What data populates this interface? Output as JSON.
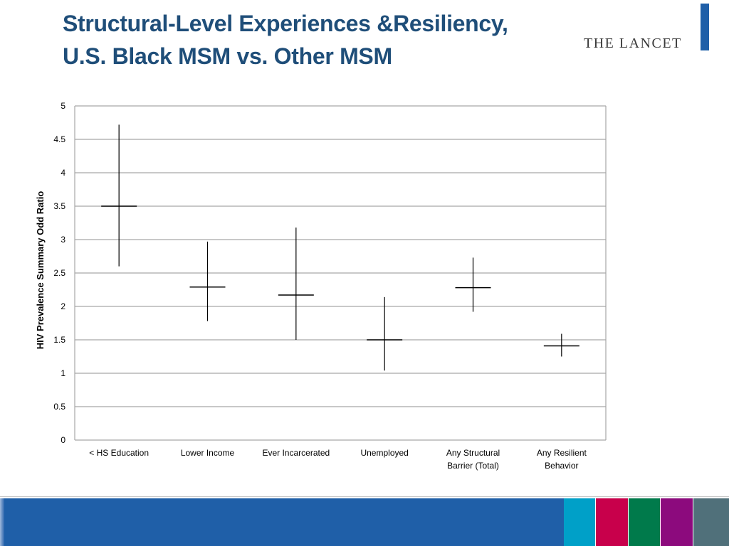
{
  "slide": {
    "title_line1": "Structural-Level Experiences &Resiliency,",
    "title_line2": "U.S. Black MSM vs. Other MSM",
    "logo_text": "THE LANCET",
    "accent_color": "#1f4e79",
    "footer_colors": [
      "#00a0c8",
      "#c8004b",
      "#007a4b",
      "#8c0a7d",
      "#50707a"
    ]
  },
  "chart_data": {
    "type": "error-bar",
    "title": "",
    "xlabel": "",
    "ylabel": "HIV Prevalence Summary Odd Ratio",
    "ylim": [
      0,
      5
    ],
    "yticks": [
      "0",
      "0.5",
      "1",
      "1.5",
      "2",
      "2.5",
      "3",
      "3.5",
      "4",
      "4.5",
      "5"
    ],
    "grid": true,
    "categories": [
      [
        "< HS Education"
      ],
      [
        "Lower Income"
      ],
      [
        "Ever Incarcerated"
      ],
      [
        "Unemployed"
      ],
      [
        "Any Structural",
        "Barrier (Total)"
      ],
      [
        "Any Resilient",
        "Behavior"
      ]
    ],
    "series": [
      {
        "estimate": [
          3.5,
          2.29,
          2.17,
          1.5,
          2.28,
          1.41
        ],
        "lower": [
          2.6,
          1.78,
          1.5,
          1.04,
          1.92,
          1.25
        ],
        "upper": [
          4.72,
          2.97,
          3.18,
          2.14,
          2.73,
          1.59
        ]
      }
    ]
  }
}
